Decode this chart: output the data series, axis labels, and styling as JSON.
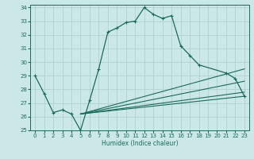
{
  "xlabel": "Humidex (Indice chaleur)",
  "bg_color": "#cce8e6",
  "grid_color": "#aacece",
  "line_color": "#1a6b5a",
  "xlim": [
    -0.5,
    23.5
  ],
  "ylim": [
    25,
    34.2
  ],
  "xticks": [
    0,
    1,
    2,
    3,
    4,
    5,
    6,
    7,
    8,
    9,
    10,
    11,
    12,
    13,
    14,
    15,
    16,
    17,
    18,
    19,
    20,
    21,
    22,
    23
  ],
  "yticks": [
    25,
    26,
    27,
    28,
    29,
    30,
    31,
    32,
    33,
    34
  ],
  "main_line": {
    "x": [
      0,
      1,
      2,
      3,
      4,
      5,
      6,
      7,
      8,
      9,
      10,
      11,
      12,
      13,
      14,
      15,
      16,
      17,
      18,
      21,
      22,
      23
    ],
    "y": [
      29.0,
      27.7,
      26.3,
      26.5,
      26.2,
      25.0,
      27.2,
      29.5,
      32.2,
      32.5,
      32.9,
      33.0,
      34.0,
      33.5,
      33.2,
      33.4,
      31.2,
      30.5,
      29.8,
      29.2,
      28.8,
      27.5
    ]
  },
  "fan_lines": [
    {
      "x": [
        5,
        23
      ],
      "y": [
        26.2,
        27.5
      ]
    },
    {
      "x": [
        5,
        23
      ],
      "y": [
        26.2,
        27.8
      ]
    },
    {
      "x": [
        5,
        23
      ],
      "y": [
        26.2,
        28.6
      ]
    },
    {
      "x": [
        5,
        23
      ],
      "y": [
        26.2,
        29.5
      ]
    }
  ]
}
